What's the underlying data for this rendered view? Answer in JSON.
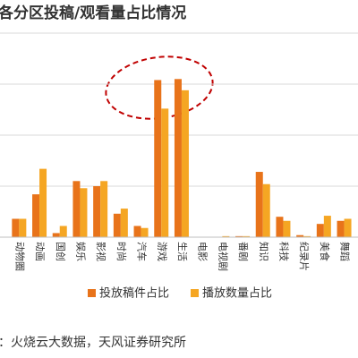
{
  "chart_data": {
    "type": "bar",
    "title": "各分区投稿/观看量占比情况",
    "categories": [
      "动物圈",
      "动画",
      "国创",
      "娱乐",
      "影视",
      "时尚",
      "汽车",
      "游戏",
      "生活",
      "电影",
      "电视剧",
      "番剧",
      "知识",
      "科技",
      "纪录片",
      "美食",
      "舞蹈"
    ],
    "series": [
      {
        "name": "投放稿件占比",
        "color": "#e8731a",
        "values": [
          1.8,
          4.2,
          0.4,
          5.5,
          5.0,
          2.3,
          1.1,
          15.4,
          15.5,
          0,
          0,
          0.1,
          6.4,
          2.0,
          0.2,
          1.3,
          1.6
        ]
      },
      {
        "name": "播放数量占比",
        "color": "#f5a623",
        "values": [
          1.8,
          6.7,
          1.1,
          4.8,
          5.5,
          2.8,
          0.9,
          12.6,
          14.4,
          0,
          0.1,
          0.1,
          5.2,
          1.6,
          0.1,
          2.1,
          1.8
        ]
      }
    ],
    "ylim": [
      0,
      20
    ],
    "yticks": [
      0,
      5,
      10,
      15,
      20
    ],
    "grid": true,
    "source": "：火烧云大数据，天风证券研究所"
  }
}
